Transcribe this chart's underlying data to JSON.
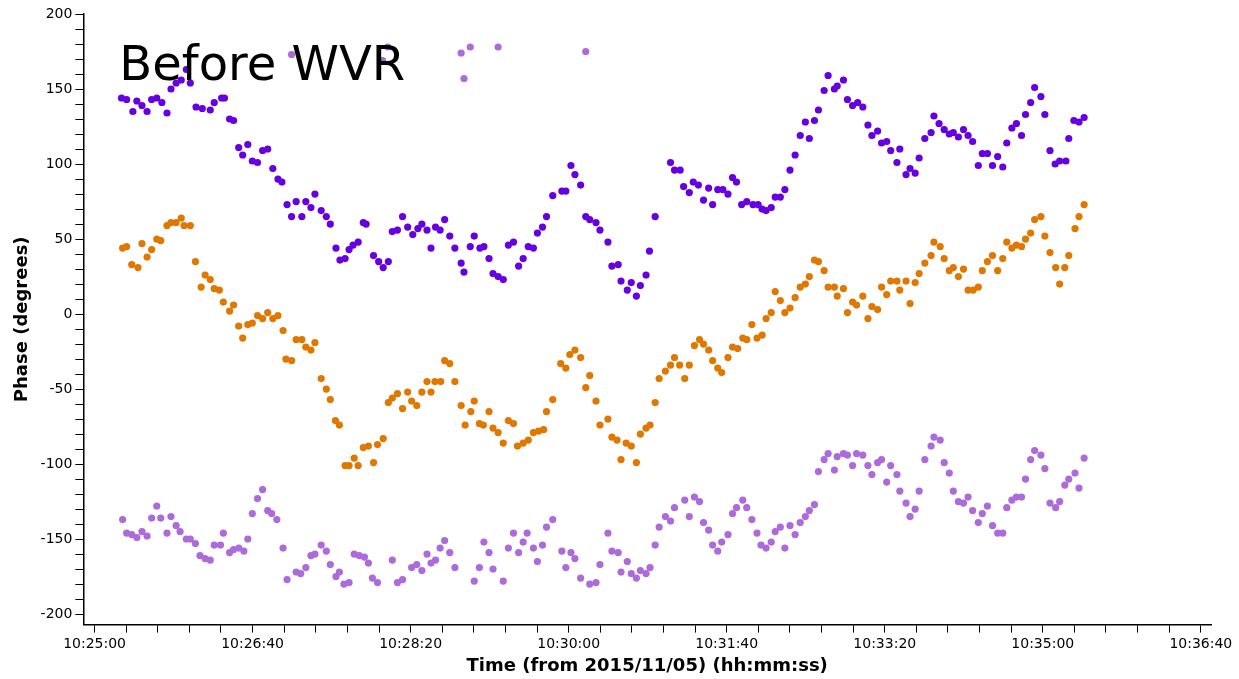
{
  "chart_data": {
    "type": "scatter",
    "title": "Before WVR",
    "xlabel": "Time (from 2015/11/05) (hh:mm:ss)",
    "ylabel": "Phase (degrees)",
    "marker": "circle",
    "grid": false,
    "xlim": [
      10.4147,
      10.6129
    ],
    "ylim": [
      -207,
      200
    ],
    "xticks": [
      {
        "value": 10.41667,
        "label": "10:25:00"
      },
      {
        "value": 10.42222,
        "label": null
      },
      {
        "value": 10.42778,
        "label": null
      },
      {
        "value": 10.43333,
        "label": null
      },
      {
        "value": 10.43889,
        "label": null
      },
      {
        "value": 10.44444,
        "label": "10:26:40"
      },
      {
        "value": 10.45,
        "label": null
      },
      {
        "value": 10.45556,
        "label": null
      },
      {
        "value": 10.46111,
        "label": null
      },
      {
        "value": 10.46667,
        "label": null
      },
      {
        "value": 10.47222,
        "label": "10:28:20"
      },
      {
        "value": 10.47778,
        "label": null
      },
      {
        "value": 10.48333,
        "label": null
      },
      {
        "value": 10.48889,
        "label": null
      },
      {
        "value": 10.49444,
        "label": null
      },
      {
        "value": 10.5,
        "label": "10:30:00"
      },
      {
        "value": 10.50556,
        "label": null
      },
      {
        "value": 10.51111,
        "label": null
      },
      {
        "value": 10.51667,
        "label": null
      },
      {
        "value": 10.52222,
        "label": null
      },
      {
        "value": 10.52778,
        "label": "10:31:40"
      },
      {
        "value": 10.53333,
        "label": null
      },
      {
        "value": 10.53889,
        "label": null
      },
      {
        "value": 10.54444,
        "label": null
      },
      {
        "value": 10.55,
        "label": null
      },
      {
        "value": 10.55556,
        "label": "10:33:20"
      },
      {
        "value": 10.56111,
        "label": null
      },
      {
        "value": 10.56667,
        "label": null
      },
      {
        "value": 10.57222,
        "label": null
      },
      {
        "value": 10.57778,
        "label": null
      },
      {
        "value": 10.58333,
        "label": "10:35:00"
      },
      {
        "value": 10.58889,
        "label": null
      },
      {
        "value": 10.59444,
        "label": null
      },
      {
        "value": 10.6,
        "label": null
      },
      {
        "value": 10.60556,
        "label": null
      },
      {
        "value": 10.61111,
        "label": "10:36:40"
      }
    ],
    "yticks": [
      -200,
      {
        "value": -190,
        "label": null
      },
      {
        "value": -180,
        "label": null
      },
      {
        "value": -170,
        "label": null
      },
      {
        "value": -160,
        "label": null
      },
      -150,
      {
        "value": -140,
        "label": null
      },
      {
        "value": -130,
        "label": null
      },
      {
        "value": -120,
        "label": null
      },
      {
        "value": -110,
        "label": null
      },
      -100,
      {
        "value": -90,
        "label": null
      },
      {
        "value": -80,
        "label": null
      },
      {
        "value": -70,
        "label": null
      },
      {
        "value": -60,
        "label": null
      },
      -50,
      {
        "value": -40,
        "label": null
      },
      {
        "value": -30,
        "label": null
      },
      {
        "value": -20,
        "label": null
      },
      {
        "value": -10,
        "label": null
      },
      0,
      {
        "value": 10,
        "label": null
      },
      {
        "value": 20,
        "label": null
      },
      {
        "value": 30,
        "label": null
      },
      {
        "value": 40,
        "label": null
      },
      50,
      {
        "value": 60,
        "label": null
      },
      {
        "value": 70,
        "label": null
      },
      {
        "value": 80,
        "label": null
      },
      {
        "value": 90,
        "label": null
      },
      100,
      {
        "value": 110,
        "label": null
      },
      {
        "value": 120,
        "label": null
      },
      {
        "value": 130,
        "label": null
      },
      {
        "value": 140,
        "label": null
      },
      150,
      {
        "value": 160,
        "label": null
      },
      {
        "value": 170,
        "label": null
      },
      {
        "value": 180,
        "label": null
      },
      {
        "value": 190,
        "label": null
      },
      200
    ],
    "series": [
      {
        "color": "#6600e0",
        "x": [
          10.4214,
          10.4223,
          10.4234,
          10.4241,
          10.425,
          10.4259,
          10.4267,
          10.4276,
          10.4285,
          10.4294,
          10.4301,
          10.431,
          10.4319,
          10.4328,
          10.4335,
          10.4345,
          10.4356,
          10.437,
          10.4377,
          10.439,
          10.4395,
          10.4404,
          10.4411,
          10.442,
          10.4427,
          10.4436,
          10.4444,
          10.4453,
          10.4462,
          10.4471,
          10.448,
          10.4489,
          10.4496,
          10.4505,
          10.4513,
          10.4521,
          10.4531,
          10.4538,
          10.4547,
          10.4554,
          10.4565,
          10.4574,
          10.4581,
          10.4591,
          10.4598,
          10.4607,
          10.4614,
          10.4621,
          10.463,
          10.4639,
          10.4644,
          10.4657,
          10.4666,
          10.4674,
          10.4683,
          10.469,
          10.4699,
          10.4708,
          10.4717,
          10.4726,
          10.4735,
          10.4742,
          10.4751,
          10.4758,
          10.4766,
          10.4774,
          10.4782,
          10.4791,
          10.48,
          10.4811,
          10.4816,
          10.4827,
          10.4834,
          10.4844,
          10.4851,
          10.486,
          10.4867,
          10.4876,
          10.4885,
          10.4894,
          10.4903,
          10.4912,
          10.492,
          10.4929,
          10.4938,
          10.4945,
          10.4954,
          10.4961,
          10.4972,
          10.4988,
          10.4995,
          10.5004,
          10.5011,
          10.5021,
          10.503,
          10.5037,
          10.5048,
          10.5055,
          10.5069,
          10.5076,
          10.5087,
          10.5092,
          10.5103,
          10.511,
          10.5119,
          10.5126,
          10.5136,
          10.5142,
          10.5152,
          10.5179,
          10.5186,
          10.5196,
          10.5202,
          10.5212,
          10.5219,
          10.5228,
          10.5237,
          10.5246,
          10.5253,
          10.5262,
          10.5271,
          10.528,
          10.5288,
          10.5295,
          10.5304,
          10.5313,
          10.5324,
          10.5333,
          10.534,
          10.5347,
          10.5356,
          10.5363,
          10.5372,
          10.538,
          10.5389,
          10.5398,
          10.5407,
          10.5416,
          10.5423,
          10.5432,
          10.5439,
          10.5449,
          10.5456,
          10.5467,
          10.5472,
          10.5483,
          10.549,
          10.5499,
          10.5508,
          10.5517,
          10.5526,
          10.5533,
          10.5543,
          10.555,
          10.5559,
          10.5566,
          10.5577,
          10.5582,
          10.5593,
          10.56,
          10.5609,
          10.5616,
          10.5626,
          10.5637,
          10.5642,
          10.5651,
          10.566,
          10.5669,
          10.5676,
          10.5685,
          10.5694,
          10.5702,
          10.571,
          10.572,
          10.5727,
          10.5736,
          10.5745,
          10.5754,
          10.5763,
          10.577,
          10.5779,
          10.5787,
          10.5796,
          10.5803,
          10.5812,
          10.5819,
          10.583,
          10.5837,
          10.5846,
          10.5855,
          10.5863,
          10.5874,
          10.5879,
          10.5888,
          10.5897,
          10.5906
        ],
        "values": [
          144,
          143,
          135,
          142,
          139,
          135,
          143,
          144,
          141,
          134,
          150,
          154,
          156,
          163,
          154,
          138,
          137,
          136,
          141,
          144,
          144,
          130,
          129,
          111,
          106,
          113,
          102,
          101,
          109,
          110,
          97,
          90,
          88,
          73,
          65,
          75,
          65,
          75,
          71,
          80,
          69,
          65,
          60,
          44,
          36,
          37,
          43,
          46,
          48,
          61,
          60,
          39,
          35,
          31,
          35,
          55,
          56,
          65,
          58,
          53,
          57,
          60,
          56,
          44,
          58,
          56,
          63,
          52,
          44,
          34,
          28,
          45,
          52,
          44,
          45,
          37,
          27,
          25,
          23,
          46,
          48,
          32,
          37,
          45,
          44,
          54,
          58,
          65,
          79,
          82,
          82,
          99,
          93,
          86,
          65,
          63,
          61,
          56,
          48,
          32,
          33,
          22,
          16,
          21,
          12,
          19,
          26,
          42,
          65,
          101,
          96,
          96,
          85,
          81,
          88,
          86,
          76,
          84,
          73,
          83,
          83,
          80,
          91,
          88,
          73,
          75,
          73,
          73,
          70,
          69,
          71,
          78,
          78,
          83,
          96,
          106,
          119,
          128,
          117,
          129,
          136,
          149,
          159,
          150,
          152,
          156,
          143,
          139,
          141,
          138,
          126,
          119,
          122,
          114,
          115,
          109,
          101,
          110,
          93,
          97,
          94,
          104,
          117,
          121,
          132,
          127,
          123,
          120,
          121,
          118,
          123,
          119,
          115,
          99,
          107,
          107,
          99,
          105,
          98,
          114,
          124,
          127,
          119,
          133,
          141,
          151,
          145,
          133,
          109,
          100,
          102,
          102,
          117,
          129,
          128,
          131
        ]
      },
      {
        "color": "#e07800",
        "x": [
          10.4216,
          10.4223,
          10.4232,
          10.4243,
          10.425,
          10.4259,
          10.4267,
          10.4276,
          10.4283,
          10.4294,
          10.4301,
          10.431,
          10.4319,
          10.4324,
          10.4335,
          10.4344,
          10.4354,
          10.4361,
          10.437,
          10.4377,
          10.4386,
          10.4393,
          10.4404,
          10.4411,
          10.442,
          10.4427,
          10.4436,
          10.4444,
          10.4453,
          10.4462,
          10.4471,
          10.448,
          10.4489,
          10.4498,
          10.4503,
          10.4513,
          10.4521,
          10.4531,
          10.4538,
          10.4547,
          10.4554,
          10.4565,
          10.4574,
          10.4581,
          10.459,
          10.4597,
          10.4607,
          10.4614,
          10.4623,
          10.463,
          10.4639,
          10.4648,
          10.4657,
          10.4664,
          10.4674,
          10.4683,
          10.469,
          10.4699,
          10.4708,
          10.4717,
          10.4724,
          10.4733,
          10.4742,
          10.4751,
          10.4758,
          10.4765,
          10.4775,
          10.4782,
          10.4791,
          10.48,
          10.4811,
          10.4818,
          10.4828,
          10.4834,
          10.4843,
          10.485,
          10.486,
          10.4867,
          10.4876,
          10.4885,
          10.4894,
          10.4903,
          10.491,
          10.492,
          10.4929,
          10.4938,
          10.4947,
          10.4956,
          10.4961,
          10.4972,
          10.4986,
          10.4995,
          10.5002,
          10.5011,
          10.5021,
          10.503,
          10.5037,
          10.5048,
          10.5055,
          10.5069,
          10.5076,
          10.5085,
          10.5092,
          10.5101,
          10.511,
          10.5119,
          10.5126,
          10.5136,
          10.5143,
          10.5152,
          10.5159,
          10.517,
          10.5179,
          10.5186,
          10.5195,
          10.5204,
          10.5212,
          10.5221,
          10.523,
          10.5237,
          10.5246,
          10.5253,
          10.5262,
          10.5269,
          10.528,
          10.5288,
          10.5297,
          10.5306,
          10.5313,
          10.5322,
          10.5331,
          10.534,
          10.5347,
          10.5356,
          10.5363,
          10.5372,
          10.538,
          10.5389,
          10.5398,
          10.5407,
          10.5416,
          10.5423,
          10.5432,
          10.5439,
          10.5449,
          10.5456,
          10.5467,
          10.5472,
          10.5483,
          10.549,
          10.5499,
          10.5506,
          10.5517,
          10.5526,
          10.5533,
          10.5543,
          10.555,
          10.5559,
          10.5566,
          10.5577,
          10.5582,
          10.5593,
          10.56,
          10.5609,
          10.5616,
          10.5626,
          10.5637,
          10.5642,
          10.5653,
          10.566,
          10.5669,
          10.5676,
          10.5685,
          10.5694,
          10.5702,
          10.5711,
          10.572,
          10.5727,
          10.5736,
          10.5745,
          10.5754,
          10.5763,
          10.577,
          10.5779,
          10.5787,
          10.5796,
          10.5803,
          10.5812,
          10.5819,
          10.583,
          10.5837,
          10.5846,
          10.5856,
          10.5863,
          10.5872,
          10.5879,
          10.589,
          10.5897,
          10.5906
        ],
        "values": [
          44,
          45,
          33,
          31,
          47,
          38,
          43,
          50,
          49,
          59,
          61,
          61,
          64,
          59,
          59,
          35,
          18,
          26,
          23,
          17,
          16,
          8,
          2,
          6,
          -8,
          -16,
          -7,
          -6,
          -1,
          -3,
          1,
          -3,
          -1,
          -11,
          -30,
          -31,
          -17,
          -17,
          -22,
          -24,
          -19,
          -43,
          -50,
          -57,
          -71,
          -74,
          -101,
          -101,
          -96,
          -101,
          -89,
          -88,
          -99,
          -87,
          -83,
          -59,
          -56,
          -53,
          -63,
          -52,
          -58,
          -61,
          -52,
          -45,
          -52,
          -45,
          -45,
          -31,
          -33,
          -45,
          -61,
          -74,
          -65,
          -58,
          -73,
          -74,
          -65,
          -76,
          -79,
          -86,
          -71,
          -73,
          -88,
          -86,
          -84,
          -79,
          -78,
          -77,
          -65,
          -57,
          -33,
          -36,
          -27,
          -24,
          -29,
          -49,
          -41,
          -58,
          -74,
          -70,
          -82,
          -84,
          -97,
          -86,
          -88,
          -99,
          -80,
          -76,
          -74,
          -59,
          -43,
          -38,
          -34,
          -29,
          -34,
          -43,
          -34,
          -21,
          -17,
          -20,
          -24,
          -31,
          -36,
          -39,
          -29,
          -22,
          -23,
          -16,
          -17,
          -7,
          -16,
          -14,
          -3,
          1,
          15,
          9,
          1,
          4,
          11,
          18,
          20,
          25,
          36,
          35,
          29,
          18,
          18,
          12,
          17,
          1,
          8,
          6,
          12,
          -3,
          5,
          3,
          18,
          13,
          22,
          22,
          16,
          22,
          7,
          21,
          27,
          34,
          39,
          48,
          45,
          37,
          29,
          31,
          25,
          30,
          16,
          16,
          18,
          29,
          35,
          39,
          29,
          37,
          48,
          44,
          46,
          45,
          50,
          54,
          63,
          65,
          52,
          41,
          31,
          20,
          31,
          39,
          57,
          65,
          73
        ]
      },
      {
        "color": "#ac6adb",
        "x": [
          10.4216,
          10.4223,
          10.4232,
          10.4241,
          10.425,
          10.4259,
          10.4267,
          10.4276,
          10.4283,
          10.4294,
          10.4301,
          10.431,
          10.4317,
          10.4328,
          10.4335,
          10.4344,
          10.4352,
          10.4361,
          10.437,
          10.4377,
          10.4388,
          10.4393,
          10.4404,
          10.4411,
          10.442,
          10.4429,
          10.4436,
          10.4444,
          10.4453,
          10.4462,
          10.4471,
          10.4478,
          10.4487,
          10.4498,
          10.4505,
          10.4513,
          10.4521,
          10.4529,
          10.4538,
          10.4547,
          10.4554,
          10.4565,
          10.4574,
          10.4581,
          10.4591,
          10.4597,
          10.4605,
          10.4614,
          10.4623,
          10.4632,
          10.4641,
          10.4648,
          10.4655,
          10.4664,
          10.4673,
          10.4682,
          10.469,
          10.4699,
          10.4708,
          10.4724,
          10.4733,
          10.4742,
          10.4751,
          10.4758,
          10.4766,
          10.4774,
          10.4782,
          10.4791,
          10.48,
          10.4811,
          10.4816,
          10.4827,
          10.4834,
          10.4843,
          10.4851,
          10.486,
          10.4867,
          10.4876,
          10.4885,
          10.4894,
          10.4903,
          10.4912,
          10.492,
          10.4927,
          10.4938,
          10.4945,
          10.4954,
          10.4961,
          10.4972,
          10.4988,
          10.4995,
          10.5004,
          10.5011,
          10.5021,
          10.503,
          10.5037,
          10.5048,
          10.5055,
          10.5069,
          10.5076,
          10.5087,
          10.5092,
          10.5103,
          10.511,
          10.5119,
          10.5126,
          10.5136,
          10.5143,
          10.5152,
          10.5159,
          10.517,
          10.5179,
          10.5186,
          10.5204,
          10.5212,
          10.5221,
          10.523,
          10.5237,
          10.5246,
          10.5253,
          10.5262,
          10.5269,
          10.528,
          10.5288,
          10.5295,
          10.5306,
          10.5313,
          10.5322,
          10.5331,
          10.5338,
          10.5347,
          10.5356,
          10.5363,
          10.5372,
          10.538,
          10.5389,
          10.5398,
          10.5407,
          10.5416,
          10.5423,
          10.5432,
          10.5439,
          10.5449,
          10.5456,
          10.5467,
          10.5472,
          10.5483,
          10.549,
          10.5499,
          10.5506,
          10.5517,
          10.5526,
          10.5533,
          10.5543,
          10.555,
          10.5559,
          10.5566,
          10.5577,
          10.5582,
          10.5593,
          10.56,
          10.5609,
          10.5616,
          10.5626,
          10.5637,
          10.5642,
          10.5653,
          10.566,
          10.5669,
          10.5676,
          10.5685,
          10.5694,
          10.5702,
          10.571,
          10.572,
          10.5727,
          10.5736,
          10.5745,
          10.5754,
          10.5763,
          10.577,
          10.5779,
          10.5787,
          10.5796,
          10.5803,
          10.5812,
          10.5819,
          10.583,
          10.5837,
          10.5846,
          10.5856,
          10.5863,
          10.5872,
          10.5879,
          10.589,
          10.5897,
          10.5906
        ],
        "values": [
          -137,
          -146,
          -147,
          -149,
          -145,
          -148,
          -136,
          -128,
          -136,
          -146,
          -135,
          -141,
          -145,
          -150,
          -150,
          -153,
          -161,
          -163,
          -164,
          -154,
          -154,
          -146,
          -159,
          -157,
          -156,
          -158,
          -150,
          -133,
          -123,
          -117,
          -131,
          -133,
          -137,
          -156,
          -177,
          173,
          -172,
          -173,
          -169,
          -161,
          -160,
          -154,
          -158,
          -167,
          -175,
          -172,
          -180,
          -179,
          -160,
          -161,
          -162,
          -166,
          -176,
          -179,
          169,
          178,
          -164,
          -179,
          -177,
          -169,
          -167,
          -171,
          -160,
          -166,
          -164,
          -156,
          -151,
          -159,
          -169,
          174,
          157,
          178,
          -178,
          -169,
          -152,
          -159,
          -170,
          178,
          -178,
          -156,
          -146,
          -159,
          -152,
          -146,
          -156,
          -165,
          -154,
          -142,
          -137,
          -158,
          -169,
          -159,
          -163,
          -176,
          175,
          -180,
          -179,
          -167,
          -146,
          -158,
          -159,
          -172,
          -165,
          -173,
          -176,
          -171,
          -173,
          -169,
          -154,
          -142,
          -135,
          -138,
          -129,
          -124,
          -135,
          -122,
          -125,
          -139,
          -144,
          -154,
          -158,
          -152,
          -147,
          -133,
          -129,
          -124,
          -129,
          -137,
          -146,
          -154,
          -156,
          -152,
          -145,
          -142,
          -156,
          -141,
          -147,
          -139,
          -135,
          -131,
          -127,
          -105,
          -97,
          -93,
          -104,
          -95,
          -93,
          -94,
          -101,
          -93,
          -94,
          -101,
          -107,
          -99,
          -97,
          -112,
          -101,
          -107,
          -118,
          -126,
          -135,
          -130,
          -118,
          -97,
          -88,
          -82,
          -84,
          -99,
          -106,
          -118,
          -125,
          -126,
          -122,
          -131,
          -139,
          -133,
          -128,
          -141,
          -146,
          -146,
          -129,
          -124,
          -122,
          -122,
          -110,
          -97,
          -91,
          -94,
          -103,
          -126,
          -129,
          -125,
          -114,
          -110,
          -106,
          -116,
          -96
        ]
      }
    ]
  }
}
